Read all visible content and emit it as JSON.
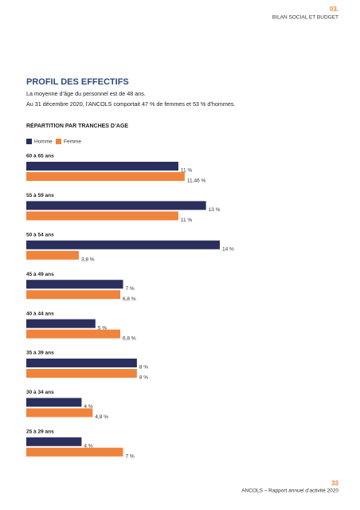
{
  "header": {
    "number": "03.",
    "title": "BILAN SOCIAL ET BUDGET"
  },
  "section": {
    "title": "PROFIL DES EFFECTIFS",
    "paragraphs": [
      "La moyenne d’âge du personnel est de 48 ans.",
      "Au 31 décembre 2020, l’ANCOLS comportait 47 % de femmes et 53 % d’hommes."
    ]
  },
  "chart_data": {
    "type": "bar",
    "orientation": "horizontal",
    "title": "RÉPARTITION PAR TRANCHES D’AGE",
    "categories": [
      "60 à 65 ans",
      "55 à 59 ans",
      "50 à 54 ans",
      "45 à 49 ans",
      "40 à 44 ans",
      "35 à 39 ans",
      "30 à 34 ans",
      "25 à 29 ans"
    ],
    "series": [
      {
        "name": "Homme",
        "color": "#2b2f5e",
        "values": [
          11,
          13,
          14,
          7,
          5,
          8,
          4,
          4
        ],
        "value_labels": [
          "11 %",
          "13 %",
          "14 %",
          "7 %",
          "5 %",
          "8 %",
          "4 %",
          "4 %"
        ]
      },
      {
        "name": "Femme",
        "color": "#f0843c",
        "values": [
          11.46,
          11,
          3.8,
          6.8,
          6.8,
          8,
          4.8,
          7
        ],
        "value_labels": [
          "11,46 %",
          "11 %",
          "3,8 %",
          "6,8 %",
          "6,8 %",
          "8 %",
          "4,8 %",
          "7 %"
        ]
      }
    ],
    "legend": "top-left"
  },
  "footer": {
    "page": "33",
    "text": "ANCOLS – Rapport annuel d’activité 2020"
  }
}
